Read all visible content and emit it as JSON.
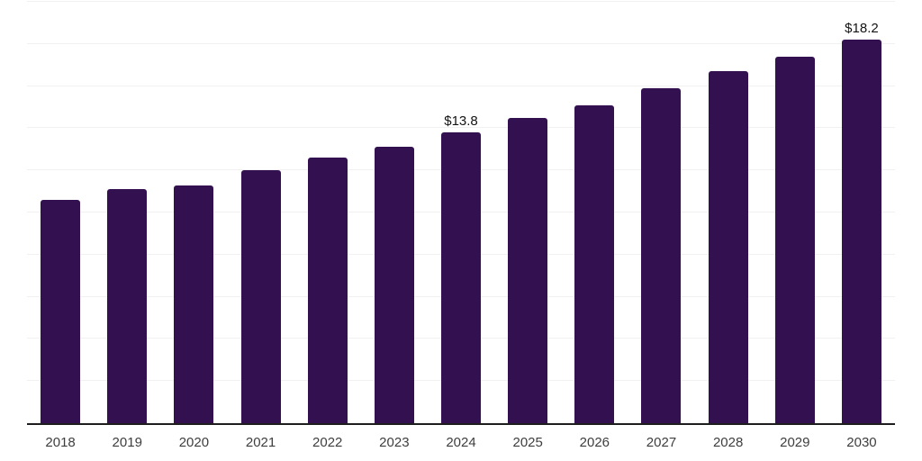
{
  "chart": {
    "colors": {
      "background": "#ffffff",
      "bar": "#331150",
      "grid": "#f1f1f1",
      "axis": "#1e1e1e",
      "tick_label": "#3e3e3e",
      "annotation": "#141414"
    }
  },
  "chart_data": {
    "type": "bar",
    "title": "",
    "xlabel": "",
    "ylabel": "",
    "categories": [
      "2018",
      "2019",
      "2020",
      "2021",
      "2022",
      "2023",
      "2024",
      "2025",
      "2026",
      "2027",
      "2028",
      "2029",
      "2030"
    ],
    "values": [
      10.6,
      11.1,
      11.3,
      12.0,
      12.6,
      13.1,
      13.8,
      14.5,
      15.1,
      15.9,
      16.7,
      17.4,
      18.2
    ],
    "annotations": [
      {
        "category": "2024",
        "label": "$13.8"
      },
      {
        "category": "2030",
        "label": "$18.2"
      }
    ],
    "ylim": [
      0,
      20
    ],
    "grid_step": 2,
    "grid": "horizontal",
    "y_tick_labels_visible": false,
    "legend_position": "none"
  }
}
